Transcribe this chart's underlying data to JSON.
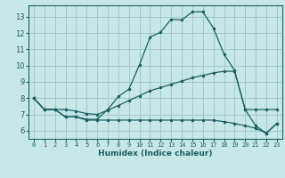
{
  "title": "",
  "xlabel": "Humidex (Indice chaleur)",
  "bg_color": "#c8e8e8",
  "grid_color": "#a0c8c8",
  "line_color": "#1a6060",
  "spine_color": "#1a6060",
  "xlim": [
    -0.5,
    23.5
  ],
  "ylim": [
    5.5,
    13.7
  ],
  "xticks": [
    0,
    1,
    2,
    3,
    4,
    5,
    6,
    7,
    8,
    9,
    10,
    11,
    12,
    13,
    14,
    15,
    16,
    17,
    18,
    19,
    20,
    21,
    22,
    23
  ],
  "yticks": [
    6,
    7,
    8,
    9,
    10,
    11,
    12,
    13
  ],
  "line1_x": [
    0,
    1,
    2,
    3,
    4,
    5,
    6,
    7,
    8,
    9,
    10,
    11,
    12,
    13,
    14,
    15,
    16,
    17,
    18,
    19,
    20,
    21,
    22,
    23
  ],
  "line1_y": [
    8.0,
    7.3,
    7.3,
    6.85,
    6.85,
    6.7,
    6.7,
    7.3,
    8.1,
    8.55,
    10.05,
    11.75,
    12.05,
    12.85,
    12.8,
    13.3,
    13.3,
    12.3,
    10.7,
    9.7,
    7.3,
    6.3,
    5.85,
    6.45
  ],
  "line2_x": [
    0,
    1,
    2,
    3,
    4,
    5,
    6,
    7,
    8,
    9,
    10,
    11,
    12,
    13,
    14,
    15,
    16,
    17,
    18,
    19,
    20,
    21,
    22,
    23
  ],
  "line2_y": [
    8.0,
    7.3,
    7.3,
    7.3,
    7.2,
    7.05,
    7.0,
    7.25,
    7.55,
    7.85,
    8.15,
    8.45,
    8.65,
    8.85,
    9.05,
    9.25,
    9.4,
    9.55,
    9.65,
    9.65,
    7.3,
    7.3,
    7.3,
    7.3
  ],
  "line3_x": [
    0,
    1,
    2,
    3,
    4,
    5,
    6,
    7,
    8,
    9,
    10,
    11,
    12,
    13,
    14,
    15,
    16,
    17,
    18,
    19,
    20,
    21,
    22,
    23
  ],
  "line3_y": [
    8.0,
    7.3,
    7.3,
    6.85,
    6.85,
    6.65,
    6.65,
    6.65,
    6.65,
    6.65,
    6.65,
    6.65,
    6.65,
    6.65,
    6.65,
    6.65,
    6.65,
    6.65,
    6.55,
    6.45,
    6.3,
    6.15,
    5.85,
    6.45
  ]
}
